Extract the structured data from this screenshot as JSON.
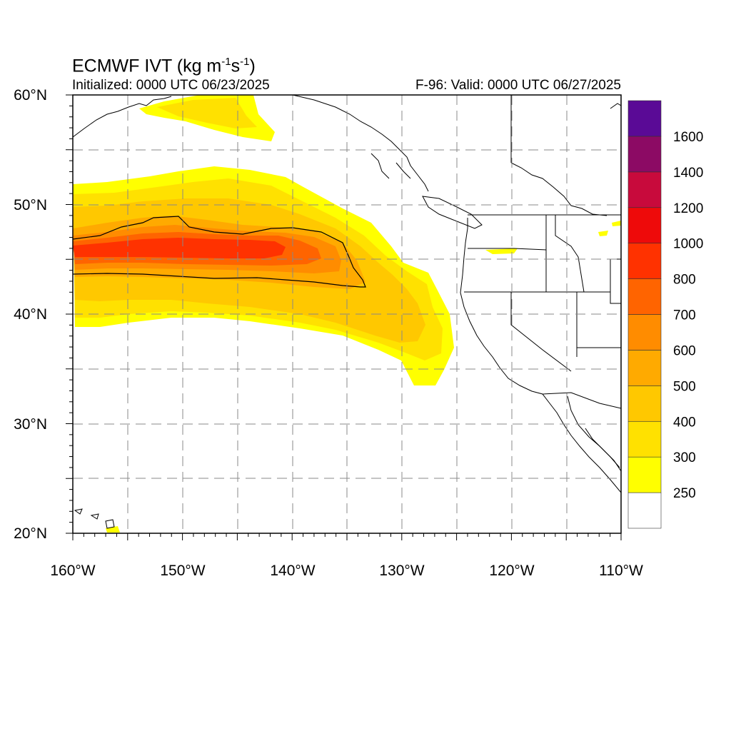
{
  "title": {
    "text": "ECMWF IVT (kg m",
    "sup1": "-1",
    "mid": "s",
    "sup2": "-1",
    "end": ")"
  },
  "init_text": "Initialized: 0000 UTC 06/23/2025",
  "valid_text": "F-96: Valid: 0000 UTC 06/27/2025",
  "map": {
    "region": "Northeast Pacific / US West Coast",
    "lon_range": [
      -160,
      -110
    ],
    "lat_range": [
      20,
      60
    ],
    "gridlines": "dashed every 5 degrees",
    "x_ticks": [
      "160°W",
      "150°W",
      "140°W",
      "130°W",
      "120°W",
      "110°W"
    ],
    "y_ticks": [
      "20°N",
      "30°N",
      "40°N",
      "50°N",
      "60°N"
    ],
    "contour_note": "black contour outlining IVT >= 500 kg m-1 s-1 core"
  },
  "colorbar": {
    "labels": [
      "250",
      "300",
      "400",
      "500",
      "600",
      "700",
      "800",
      "1000",
      "1200",
      "1400",
      "1600"
    ],
    "colors": [
      "#ffffff",
      "#ffff00",
      "#ffe100",
      "#ffc800",
      "#ffaa00",
      "#ff8c00",
      "#ff6400",
      "#ff3200",
      "#ee0a0a",
      "#c80a3c",
      "#8c0a64",
      "#5a0a96"
    ]
  },
  "ivt_field": {
    "levels": [
      250,
      300,
      400,
      500,
      600,
      700,
      800,
      1000
    ],
    "colors": [
      "#ffff00",
      "#ffe100",
      "#ffc800",
      "#ffaa00",
      "#ff8c00",
      "#ff6400",
      "#ff3200",
      "#ee0a0a"
    ]
  }
}
